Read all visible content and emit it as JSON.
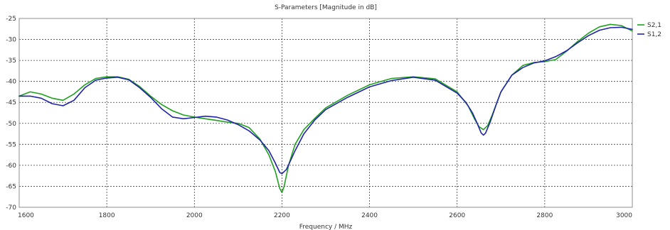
{
  "chart_data": {
    "type": "line",
    "title": "S-Parameters [Magnitude in dB]",
    "xlabel": "Frequency / MHz",
    "ylabel": "",
    "xlim": [
      1600,
      3000
    ],
    "ylim": [
      -70,
      -25
    ],
    "x_ticks": [
      1600,
      1800,
      2000,
      2200,
      2400,
      2600,
      2800,
      3000
    ],
    "y_ticks": [
      -25,
      -30,
      -35,
      -40,
      -45,
      -50,
      -55,
      -60,
      -65,
      -70
    ],
    "x_tick_labels": [
      "1600",
      "1800",
      "2000",
      "2200",
      "2400",
      "2600",
      "2800",
      "3000"
    ],
    "y_tick_labels": [
      "-25",
      "-30",
      "-35",
      "-40",
      "-45",
      "-50",
      "-55",
      "-60",
      "-65",
      "-70"
    ],
    "grid": true,
    "legend_position": "right",
    "series": [
      {
        "name": "S2,1",
        "color": "#1fa01f",
        "x": [
          1600,
          1625,
          1650,
          1675,
          1700,
          1725,
          1750,
          1775,
          1800,
          1825,
          1850,
          1875,
          1900,
          1925,
          1950,
          1975,
          2000,
          2025,
          2050,
          2075,
          2100,
          2125,
          2150,
          2170,
          2185,
          2195,
          2200,
          2205,
          2215,
          2230,
          2250,
          2275,
          2300,
          2350,
          2400,
          2450,
          2500,
          2550,
          2600,
          2625,
          2640,
          2650,
          2660,
          2670,
          2680,
          2700,
          2725,
          2750,
          2775,
          2800,
          2825,
          2850,
          2875,
          2900,
          2925,
          2950,
          2975,
          3000
        ],
        "y": [
          -43.5,
          -42.5,
          -43.0,
          -44.0,
          -44.5,
          -43.0,
          -40.8,
          -39.3,
          -38.9,
          -38.9,
          -39.5,
          -41.2,
          -43.5,
          -45.5,
          -47.0,
          -48.0,
          -48.5,
          -48.9,
          -49.3,
          -49.7,
          -50.0,
          -51.0,
          -53.8,
          -57.5,
          -61.5,
          -65.5,
          -66.5,
          -65.0,
          -60.0,
          -55.0,
          -51.5,
          -48.8,
          -46.3,
          -43.3,
          -40.8,
          -39.3,
          -38.9,
          -39.4,
          -42.5,
          -45.8,
          -49.0,
          -50.8,
          -51.5,
          -50.5,
          -48.0,
          -42.5,
          -38.5,
          -36.2,
          -35.5,
          -35.3,
          -34.8,
          -32.8,
          -30.5,
          -28.5,
          -27.0,
          -26.4,
          -26.7,
          -28.0
        ]
      },
      {
        "name": "S1,2",
        "color": "#1f24a8",
        "x": [
          1600,
          1625,
          1650,
          1675,
          1700,
          1725,
          1750,
          1775,
          1800,
          1825,
          1850,
          1875,
          1900,
          1925,
          1950,
          1975,
          2000,
          2025,
          2050,
          2075,
          2100,
          2125,
          2150,
          2170,
          2185,
          2195,
          2200,
          2210,
          2220,
          2230,
          2250,
          2275,
          2300,
          2350,
          2400,
          2450,
          2500,
          2550,
          2600,
          2620,
          2635,
          2645,
          2655,
          2660,
          2665,
          2675,
          2690,
          2700,
          2725,
          2750,
          2775,
          2800,
          2825,
          2850,
          2875,
          2900,
          2925,
          2950,
          2975,
          3000
        ],
        "y": [
          -43.5,
          -43.5,
          -44.0,
          -45.3,
          -45.8,
          -44.5,
          -41.5,
          -39.7,
          -39.2,
          -39.0,
          -39.6,
          -41.5,
          -43.8,
          -46.5,
          -48.5,
          -48.9,
          -48.6,
          -48.3,
          -48.5,
          -49.2,
          -50.3,
          -51.8,
          -54.0,
          -56.5,
          -59.5,
          -61.7,
          -62.0,
          -61.0,
          -58.8,
          -56.5,
          -52.5,
          -49.2,
          -46.7,
          -43.8,
          -41.3,
          -39.8,
          -39.0,
          -39.7,
          -42.8,
          -45.0,
          -47.5,
          -49.8,
          -52.3,
          -52.8,
          -52.3,
          -49.8,
          -45.3,
          -42.5,
          -38.5,
          -36.7,
          -35.6,
          -35.1,
          -34.1,
          -32.7,
          -30.8,
          -29.1,
          -27.8,
          -27.2,
          -27.1,
          -27.6
        ]
      }
    ]
  }
}
